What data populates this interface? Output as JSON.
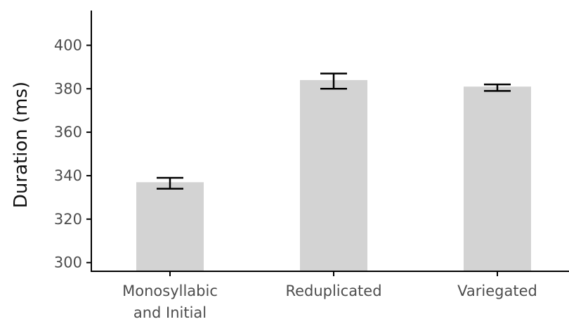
{
  "chart_data": {
    "type": "bar",
    "title": "",
    "xlabel": "",
    "ylabel": "Duration (ms)",
    "categories": [
      [
        "Monosyllabic",
        "and Initial"
      ],
      [
        "Reduplicated"
      ],
      [
        "Variegated"
      ]
    ],
    "values": [
      337,
      384,
      381
    ],
    "error_low": [
      334,
      380,
      379
    ],
    "error_high": [
      339,
      387,
      382
    ],
    "ylim": [
      296,
      416
    ],
    "yticks": [
      300,
      320,
      340,
      360,
      380,
      400
    ],
    "grid": false,
    "bar_color": "#d3d3d3",
    "errorbar_color": "#000000"
  }
}
